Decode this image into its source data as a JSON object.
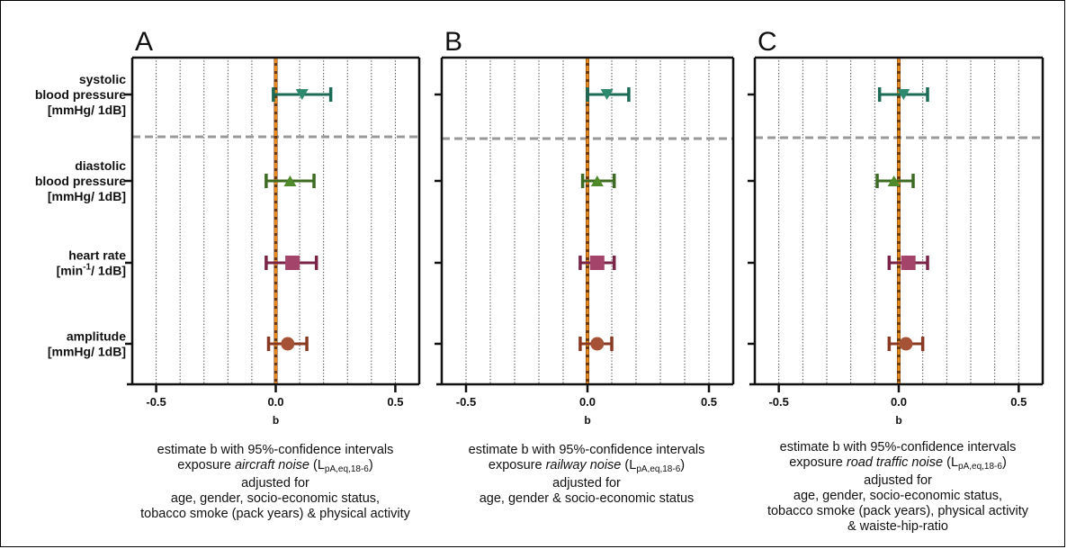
{
  "colors": {
    "systolic": "#1c6b57",
    "diastolic": "#3d6b22",
    "heart_rate": "#7a2448",
    "amplitude": "#8a3a22",
    "reference_line": "#e98a1e",
    "separator": "#999999",
    "grid": "#333333"
  },
  "chart_data": [
    {
      "type": "forest-plot",
      "panel_label": "A",
      "xlabel": "b",
      "xlim": [
        -0.6,
        0.6
      ],
      "xticks": [
        "-0.5",
        "0.0",
        "0.5"
      ],
      "reference_line": 0,
      "categories": [
        "systolic blood pressure [mmHg/ 1dB]",
        "diastolic blood pressure [mmHg/ 1dB]",
        "heart rate [min-1/ 1dB]",
        "amplitude [mmHg/ 1dB]"
      ],
      "points": [
        {
          "category": "systolic blood pressure [mmHg/ 1dB]",
          "estimate": 0.11,
          "ci_low": -0.01,
          "ci_high": 0.23,
          "marker": "triangle-down"
        },
        {
          "category": "diastolic blood pressure [mmHg/ 1dB]",
          "estimate": 0.06,
          "ci_low": -0.04,
          "ci_high": 0.16,
          "marker": "triangle-up"
        },
        {
          "category": "heart rate [min-1/ 1dB]",
          "estimate": 0.07,
          "ci_low": -0.04,
          "ci_high": 0.17,
          "marker": "square"
        },
        {
          "category": "amplitude [mmHg/ 1dB]",
          "estimate": 0.05,
          "ci_low": -0.03,
          "ci_high": 0.13,
          "marker": "circle"
        }
      ]
    },
    {
      "type": "forest-plot",
      "panel_label": "B",
      "xlabel": "b",
      "xlim": [
        -0.6,
        0.6
      ],
      "xticks": [
        "-0.5",
        "0.0",
        "0.5"
      ],
      "reference_line": 0,
      "categories": [
        "systolic blood pressure [mmHg/ 1dB]",
        "diastolic blood pressure [mmHg/ 1dB]",
        "heart rate [min-1/ 1dB]",
        "amplitude [mmHg/ 1dB]"
      ],
      "points": [
        {
          "category": "systolic blood pressure [mmHg/ 1dB]",
          "estimate": 0.08,
          "ci_low": 0.0,
          "ci_high": 0.17,
          "marker": "triangle-down"
        },
        {
          "category": "diastolic blood pressure [mmHg/ 1dB]",
          "estimate": 0.04,
          "ci_low": -0.02,
          "ci_high": 0.11,
          "marker": "triangle-up"
        },
        {
          "category": "heart rate [min-1/ 1dB]",
          "estimate": 0.04,
          "ci_low": -0.03,
          "ci_high": 0.11,
          "marker": "square"
        },
        {
          "category": "amplitude [mmHg/ 1dB]",
          "estimate": 0.04,
          "ci_low": -0.03,
          "ci_high": 0.1,
          "marker": "circle"
        }
      ]
    },
    {
      "type": "forest-plot",
      "panel_label": "C",
      "xlabel": "b",
      "xlim": [
        -0.6,
        0.6
      ],
      "xticks": [
        "-0.5",
        "0.0",
        "0.5"
      ],
      "reference_line": 0,
      "categories": [
        "systolic blood pressure [mmHg/ 1dB]",
        "diastolic blood pressure [mmHg/ 1dB]",
        "heart rate [min-1/ 1dB]",
        "amplitude [mmHg/ 1dB]"
      ],
      "points": [
        {
          "category": "systolic blood pressure [mmHg/ 1dB]",
          "estimate": 0.02,
          "ci_low": -0.08,
          "ci_high": 0.12,
          "marker": "triangle-down"
        },
        {
          "category": "diastolic blood pressure [mmHg/ 1dB]",
          "estimate": -0.02,
          "ci_low": -0.09,
          "ci_high": 0.06,
          "marker": "triangle-up"
        },
        {
          "category": "heart rate [min-1/ 1dB]",
          "estimate": 0.04,
          "ci_low": -0.04,
          "ci_high": 0.12,
          "marker": "square"
        },
        {
          "category": "amplitude [mmHg/ 1dB]",
          "estimate": 0.03,
          "ci_low": -0.04,
          "ci_high": 0.1,
          "marker": "circle"
        }
      ]
    }
  ],
  "row_labels": [
    {
      "lines": [
        "systolic",
        "blood pressure",
        "[mmHg/ 1dB]"
      ]
    },
    {
      "lines": [
        "diastolic",
        "blood pressure",
        "[mmHg/ 1dB]"
      ]
    },
    {
      "lines": [
        "heart rate",
        "[min-1/ 1dB]"
      ]
    },
    {
      "lines": [
        "amplitude",
        "[mmHg/ 1dB]"
      ]
    }
  ],
  "captions": {
    "A": {
      "line1": "estimate b with 95%-confidence intervals",
      "exposure_prefix": "exposure ",
      "exposure_noise": "aircraft noise",
      "exposure_metric": "(L",
      "exposure_sub": "pA,eq,18-6",
      "exposure_close": ")",
      "adjusted": "adjusted for",
      "adj_lines": [
        "age, gender, socio-economic status,",
        "tobacco smoke (pack years) & physical activity"
      ]
    },
    "B": {
      "line1": "estimate b with 95%-confidence intervals",
      "exposure_prefix": "exposure ",
      "exposure_noise": "railway noise",
      "exposure_metric": "(L",
      "exposure_sub": "pA,eq,18-6",
      "exposure_close": ")",
      "adjusted": "adjusted for",
      "adj_lines": [
        "age, gender & socio-economic status"
      ]
    },
    "C": {
      "line1": "estimate b with 95%-confidence intervals",
      "exposure_prefix": "exposure ",
      "exposure_noise": "road traffic noise",
      "exposure_metric": "(L",
      "exposure_sub": "pA,eq,18-6",
      "exposure_close": ")",
      "adjusted": "adjusted for",
      "adj_lines": [
        "age, gender, socio-economic status,",
        "tobacco smoke  (pack years), physical activity",
        "& waiste-hip-ratio"
      ]
    }
  }
}
